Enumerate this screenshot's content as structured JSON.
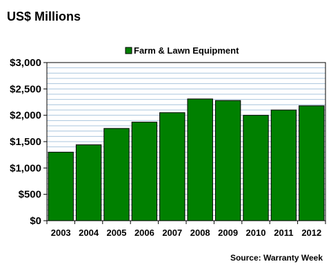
{
  "header": {
    "title": "US$ Millions"
  },
  "footer": {
    "source": "Source: Warranty Week"
  },
  "colors": {
    "bar": "#008000",
    "bar_stroke": "#000000",
    "grid": "#a9c4dd"
  },
  "chart_data": {
    "type": "bar",
    "title": "",
    "xlabel": "",
    "ylabel": "US$ Millions",
    "categories": [
      "2003",
      "2004",
      "2005",
      "2006",
      "2007",
      "2008",
      "2009",
      "2010",
      "2011",
      "2012"
    ],
    "series": [
      {
        "name": "Farm & Lawn Equipment",
        "values": [
          1300,
          1440,
          1750,
          1870,
          2050,
          2310,
          2280,
          2000,
          2100,
          2180
        ]
      }
    ],
    "ylim": [
      0,
      3000
    ],
    "yticks": [
      0,
      500,
      1000,
      1500,
      2000,
      2500,
      3000
    ],
    "ytick_labels": [
      "$0",
      "$500",
      "$1,000",
      "$1,500",
      "$2,000",
      "$2,500",
      "$3,000"
    ],
    "grid": true,
    "legend_position": "top-center"
  }
}
